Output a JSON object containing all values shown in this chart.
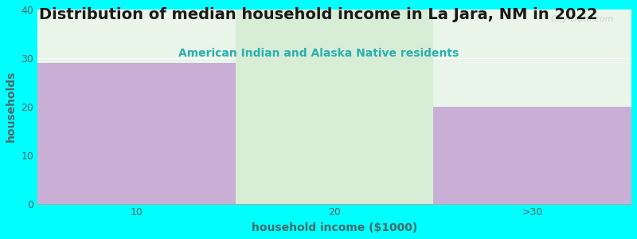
{
  "title": "Distribution of median household income in La Jara, NM in 2022",
  "subtitle": "American Indian and Alaska Native residents",
  "categories": [
    "10",
    "20",
    ">30"
  ],
  "values": [
    29,
    40,
    20
  ],
  "bar_colors": [
    "#c9aed6",
    "#d8edd6",
    "#c9aed6"
  ],
  "xlabel": "household income ($1000)",
  "ylabel": "households",
  "ylim": [
    0,
    40
  ],
  "yticks": [
    0,
    10,
    20,
    30,
    40
  ],
  "background_color": "#00ffff",
  "plot_bg_top": "#f0f0f8",
  "plot_bg_bottom": "#e0f0e0",
  "title_fontsize": 14,
  "subtitle_fontsize": 10,
  "axis_label_fontsize": 10,
  "tick_fontsize": 9,
  "title_color": "#1a1a1a",
  "subtitle_color": "#2ab0b0",
  "label_color": "#4a6a6a",
  "watermark": "City-Data.com"
}
